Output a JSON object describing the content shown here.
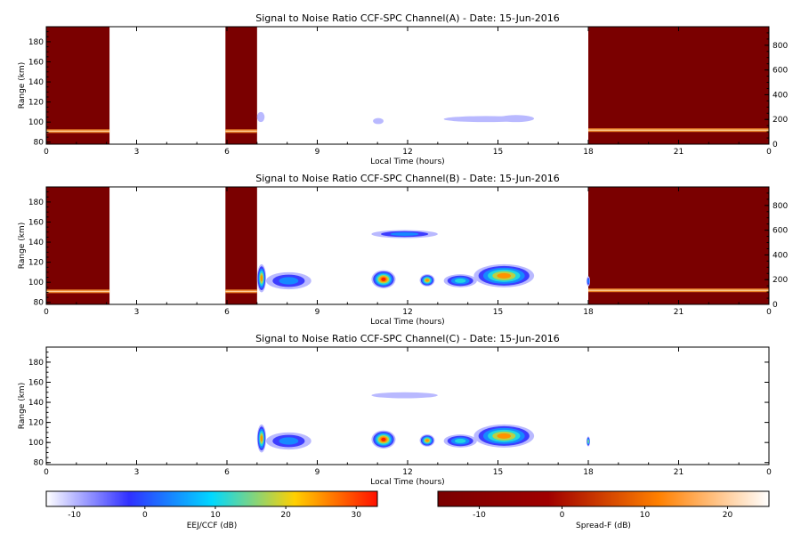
{
  "chart_data": [
    {
      "type": "heatmap",
      "title": "Signal to Noise Ratio CCF-SPC Channel(A) - Date: 15-Jun-2016",
      "xlabel": "Local Time (hours)",
      "ylabel": "Range (km)",
      "xlim": [
        0,
        24
      ],
      "ylim": [
        78,
        195
      ],
      "x_ticks": [
        "0",
        "3",
        "6",
        "9",
        "12",
        "15",
        "18",
        "21",
        "0"
      ],
      "y_ticks": [
        "80",
        "100",
        "120",
        "140",
        "160",
        "180"
      ],
      "y2lim": [
        0,
        950
      ],
      "y2_ticks": [
        "0",
        "200",
        "400",
        "600",
        "800"
      ],
      "spread_f_blocks": [
        [
          0,
          2.1
        ],
        [
          5.95,
          7.0
        ],
        [
          18.0,
          24.0
        ]
      ],
      "spread_f_lines": [
        {
          "y": 91,
          "x": [
            0,
            2.1
          ]
        },
        {
          "y": 91,
          "x": [
            5.95,
            7.0
          ]
        },
        {
          "y": 92,
          "x": [
            18.0,
            24.0
          ]
        }
      ],
      "eej_blobs": [
        {
          "x": [
            7.0,
            7.25
          ],
          "y": [
            100,
            110
          ],
          "db": -8
        },
        {
          "x": [
            10.85,
            11.2
          ],
          "y": [
            98,
            104
          ],
          "db": -6
        },
        {
          "x": [
            13.2,
            16.0
          ],
          "y": [
            100,
            106
          ],
          "db": -8
        },
        {
          "x": [
            15.0,
            16.2
          ],
          "y": [
            100,
            107
          ],
          "db": -5
        }
      ]
    },
    {
      "type": "heatmap",
      "title": "Signal to Noise Ratio CCF-SPC Channel(B) - Date: 15-Jun-2016",
      "xlabel": "Local Time (hours)",
      "ylabel": "Range (km)",
      "xlim": [
        0,
        24
      ],
      "ylim": [
        78,
        195
      ],
      "x_ticks": [
        "0",
        "3",
        "6",
        "9",
        "12",
        "15",
        "18",
        "21",
        "0"
      ],
      "y_ticks": [
        "80",
        "100",
        "120",
        "140",
        "160",
        "180"
      ],
      "y2lim": [
        0,
        950
      ],
      "y2_ticks": [
        "0",
        "200",
        "400",
        "600",
        "800"
      ],
      "spread_f_blocks": [
        [
          0,
          2.1
        ],
        [
          5.95,
          7.0
        ],
        [
          18.0,
          24.0
        ]
      ],
      "spread_f_lines": [
        {
          "y": 91,
          "x": [
            0,
            2.1
          ]
        },
        {
          "y": 91,
          "x": [
            5.95,
            7.0
          ]
        },
        {
          "y": 92,
          "x": [
            18.0,
            24.0
          ]
        }
      ],
      "eej_blobs": [
        {
          "x": [
            7.0,
            7.3
          ],
          "y": [
            90,
            118
          ],
          "db": 25
        },
        {
          "x": [
            7.3,
            8.8
          ],
          "y": [
            93,
            110
          ],
          "db": 5
        },
        {
          "x": [
            10.8,
            11.6
          ],
          "y": [
            94,
            112
          ],
          "db": 32
        },
        {
          "x": [
            12.4,
            12.9
          ],
          "y": [
            96,
            108
          ],
          "db": 25
        },
        {
          "x": [
            13.2,
            14.3
          ],
          "y": [
            95,
            108
          ],
          "db": 15
        },
        {
          "x": [
            14.2,
            16.2
          ],
          "y": [
            95,
            118
          ],
          "db": 27
        },
        {
          "x": [
            10.8,
            13.0
          ],
          "y": [
            144,
            152
          ],
          "db": 5
        },
        {
          "x": [
            17.95,
            18.05
          ],
          "y": [
            96,
            106
          ],
          "db": 10
        }
      ]
    },
    {
      "type": "heatmap",
      "title": "Signal to Noise Ratio CCF-SPC Channel(C) - Date: 15-Jun-2016",
      "xlabel": "Local Time (hours)",
      "ylabel": "Range (km)",
      "xlim": [
        0,
        24
      ],
      "ylim": [
        78,
        195
      ],
      "x_ticks": [
        "0",
        "3",
        "6",
        "9",
        "12",
        "15",
        "18",
        "21",
        "0"
      ],
      "y_ticks": [
        "80",
        "100",
        "120",
        "140",
        "160",
        "180"
      ],
      "eej_blobs": [
        {
          "x": [
            7.0,
            7.3
          ],
          "y": [
            90,
            118
          ],
          "db": 25
        },
        {
          "x": [
            7.3,
            8.8
          ],
          "y": [
            93,
            110
          ],
          "db": 5
        },
        {
          "x": [
            10.8,
            11.6
          ],
          "y": [
            94,
            112
          ],
          "db": 32
        },
        {
          "x": [
            12.4,
            12.9
          ],
          "y": [
            96,
            108
          ],
          "db": 25
        },
        {
          "x": [
            13.2,
            14.3
          ],
          "y": [
            95,
            108
          ],
          "db": 15
        },
        {
          "x": [
            14.2,
            16.2
          ],
          "y": [
            95,
            118
          ],
          "db": 27
        },
        {
          "x": [
            10.8,
            13.0
          ],
          "y": [
            144,
            150
          ],
          "db": -5
        },
        {
          "x": [
            17.95,
            18.05
          ],
          "y": [
            96,
            106
          ],
          "db": 20
        }
      ]
    }
  ],
  "colorbars": [
    {
      "label": "EEJ/CCF (dB)",
      "range": [
        -14,
        33
      ],
      "ticks": [
        -10,
        0,
        10,
        20,
        30
      ],
      "stops": [
        "#ffffff",
        "#3030ff",
        "#00d8ff",
        "#ffd000",
        "#ff1000"
      ]
    },
    {
      "label": "Spread-F (dB)",
      "range": [
        -15,
        25
      ],
      "ticks": [
        -10,
        0,
        10,
        20
      ],
      "stops": [
        "#7a0000",
        "#a00000",
        "#ff8000",
        "#ffffff"
      ]
    }
  ]
}
